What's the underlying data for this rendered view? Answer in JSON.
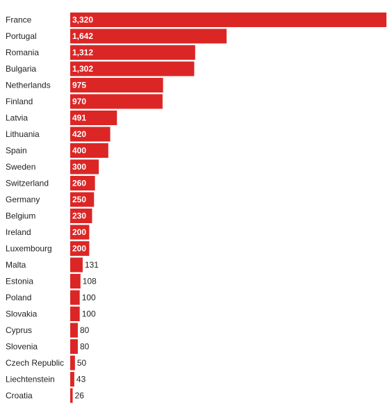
{
  "chart_data": {
    "type": "bar",
    "orientation": "horizontal",
    "categories": [
      "France",
      "Portugal",
      "Romania",
      "Bulgaria",
      "Netherlands",
      "Finland",
      "Latvia",
      "Lithuania",
      "Spain",
      "Sweden",
      "Switzerland",
      "Germany",
      "Belgium",
      "Ireland",
      "Luxembourg",
      "Malta",
      "Estonia",
      "Poland",
      "Slovakia",
      "Cyprus",
      "Slovenia",
      "Czech Republic",
      "Liechtenstein",
      "Croatia"
    ],
    "values": [
      3320,
      1642,
      1312,
      1302,
      975,
      970,
      491,
      420,
      400,
      300,
      260,
      250,
      230,
      200,
      200,
      131,
      108,
      100,
      100,
      80,
      80,
      50,
      43,
      26
    ],
    "value_labels": [
      "3,320",
      "1,642",
      "1,312",
      "1,302",
      "975",
      "970",
      "491",
      "420",
      "400",
      "300",
      "260",
      "250",
      "230",
      "200",
      "200",
      "131",
      "108",
      "100",
      "100",
      "80",
      "80",
      "50",
      "43",
      "26"
    ],
    "bar_color": "#dc2626",
    "label_color": "#222222",
    "inside_label_color": "#ffffff",
    "xlim": [
      0,
      3320
    ],
    "grid": false,
    "legend": false
  }
}
